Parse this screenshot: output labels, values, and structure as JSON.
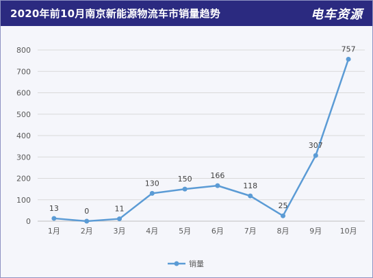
{
  "header": {
    "title": "2020年前10月南京新能源物流车市销量趋势",
    "brand": "电车资源",
    "background_color": "#2b2a80"
  },
  "chart_data": {
    "type": "line",
    "categories": [
      "1月",
      "2月",
      "3月",
      "4月",
      "5月",
      "6月",
      "7月",
      "8月",
      "9月",
      "10月"
    ],
    "series": [
      {
        "name": "销量",
        "values": [
          13,
          0,
          11,
          130,
          150,
          166,
          118,
          25,
          307,
          757
        ],
        "color": "#5b9bd5"
      }
    ],
    "y_ticks": [
      0,
      100,
      200,
      300,
      400,
      500,
      600,
      700,
      800
    ],
    "ylim": [
      0,
      800
    ],
    "grid": true,
    "data_labels": true,
    "legend_position": "bottom"
  }
}
